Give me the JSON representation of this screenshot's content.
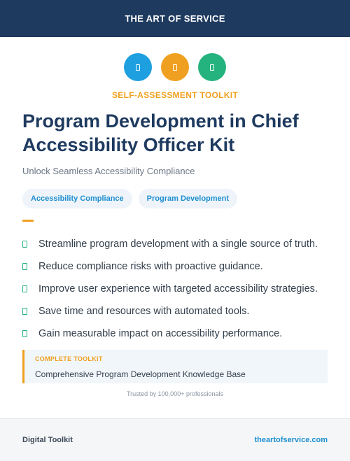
{
  "header": {
    "brand": "THE ART OF SERVICE"
  },
  "icons": [
    {
      "name": "document-icon",
      "color": "#1e9fe0"
    },
    {
      "name": "document-icon",
      "color": "#f0a020"
    },
    {
      "name": "document-icon",
      "color": "#24b37e"
    }
  ],
  "eyebrow": "SELF-ASSESSMENT TOOLKIT",
  "title": "Program Development in Chief Accessibility Officer Kit",
  "subtitle": "Unlock Seamless Accessibility Compliance",
  "tags": [
    "Accessibility Compliance",
    "Program Development"
  ],
  "features": [
    "Streamline program development with a single source of truth.",
    "Reduce compliance risks with proactive guidance.",
    "Improve user experience with targeted accessibility strategies.",
    "Save time and resources with automated tools.",
    "Gain measurable impact on accessibility performance."
  ],
  "toolkit": {
    "label": "COMPLETE TOOLKIT",
    "text": "Comprehensive Program Development Knowledge Base"
  },
  "trusted": "Trusted by 100,000+ professionals",
  "footer": {
    "left": "Digital Toolkit",
    "right": "theartofservice.com"
  }
}
